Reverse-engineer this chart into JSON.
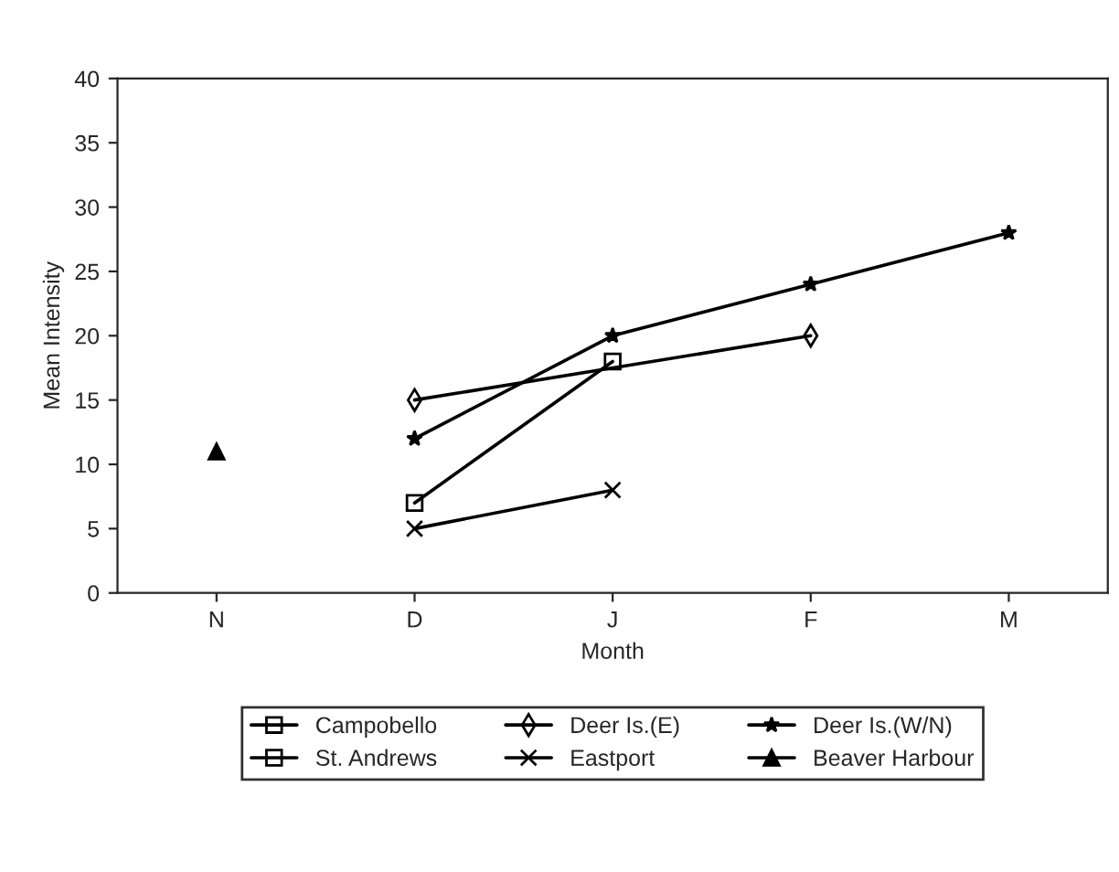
{
  "chart_data": {
    "type": "line",
    "xlabel": "Month",
    "ylabel": "Mean Intensity",
    "categories": [
      "N",
      "D",
      "J",
      "F",
      "M"
    ],
    "series": [
      {
        "name": "Campobello",
        "color": "#000000",
        "marker": "square",
        "values": [
          null,
          null,
          null,
          null,
          null
        ]
      },
      {
        "name": "Deer Is.(E)",
        "color": "#000000",
        "marker": "diamond",
        "values": [
          null,
          15,
          null,
          20,
          null
        ]
      },
      {
        "name": "Deer Is.(W/N)",
        "color": "#000000",
        "marker": "star",
        "values": [
          null,
          12,
          20,
          24,
          28
        ]
      },
      {
        "name": "St. Andrews",
        "color": "#000000",
        "marker": "square",
        "values": [
          null,
          7,
          18,
          null,
          null
        ]
      },
      {
        "name": "Eastport",
        "color": "#000000",
        "marker": "cross",
        "values": [
          null,
          5,
          8,
          null,
          null
        ]
      },
      {
        "name": "Beaver Harbour",
        "color": "#000000",
        "marker": "triangle",
        "values": [
          11,
          null,
          null,
          null,
          null
        ]
      }
    ],
    "ylim": [
      0,
      40
    ],
    "yticks": [
      0,
      5,
      10,
      15,
      20,
      25,
      30,
      35,
      40
    ],
    "grid": false,
    "legend": "bottom",
    "line_style": "solid"
  }
}
